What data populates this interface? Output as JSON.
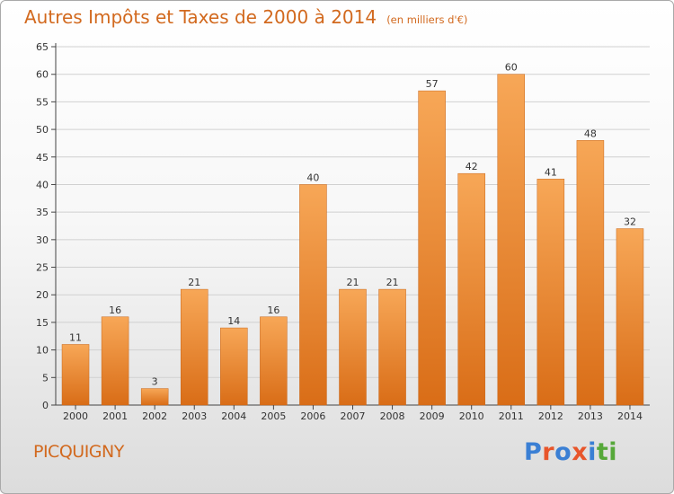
{
  "title": "Autres Impôts et Taxes de 2000 à 2014",
  "subtitle": "(en milliers d'€)",
  "location": "PICQUIGNY",
  "logo": {
    "text": "Proxiti",
    "colors": [
      "#3a7fd4",
      "#e8552a",
      "#3a7fd4",
      "#e8552a",
      "#3a7fd4",
      "#56a83a",
      "#56a83a"
    ]
  },
  "colors": {
    "bar_light": "#f7a757",
    "bar_dark": "#d96d17",
    "title": "#d2691e",
    "grid": "#d0d0d0"
  },
  "chart_data": {
    "type": "bar",
    "categories": [
      "2000",
      "2001",
      "2002",
      "2003",
      "2004",
      "2005",
      "2006",
      "2007",
      "2008",
      "2009",
      "2010",
      "2011",
      "2012",
      "2013",
      "2014"
    ],
    "values": [
      11,
      16,
      3,
      21,
      14,
      16,
      40,
      21,
      21,
      57,
      42,
      60,
      41,
      48,
      32
    ],
    "ylim": [
      0,
      65
    ],
    "yticks": [
      0,
      5,
      10,
      15,
      20,
      25,
      30,
      35,
      40,
      45,
      50,
      55,
      60,
      65
    ],
    "grid": true,
    "data_labels": true
  }
}
